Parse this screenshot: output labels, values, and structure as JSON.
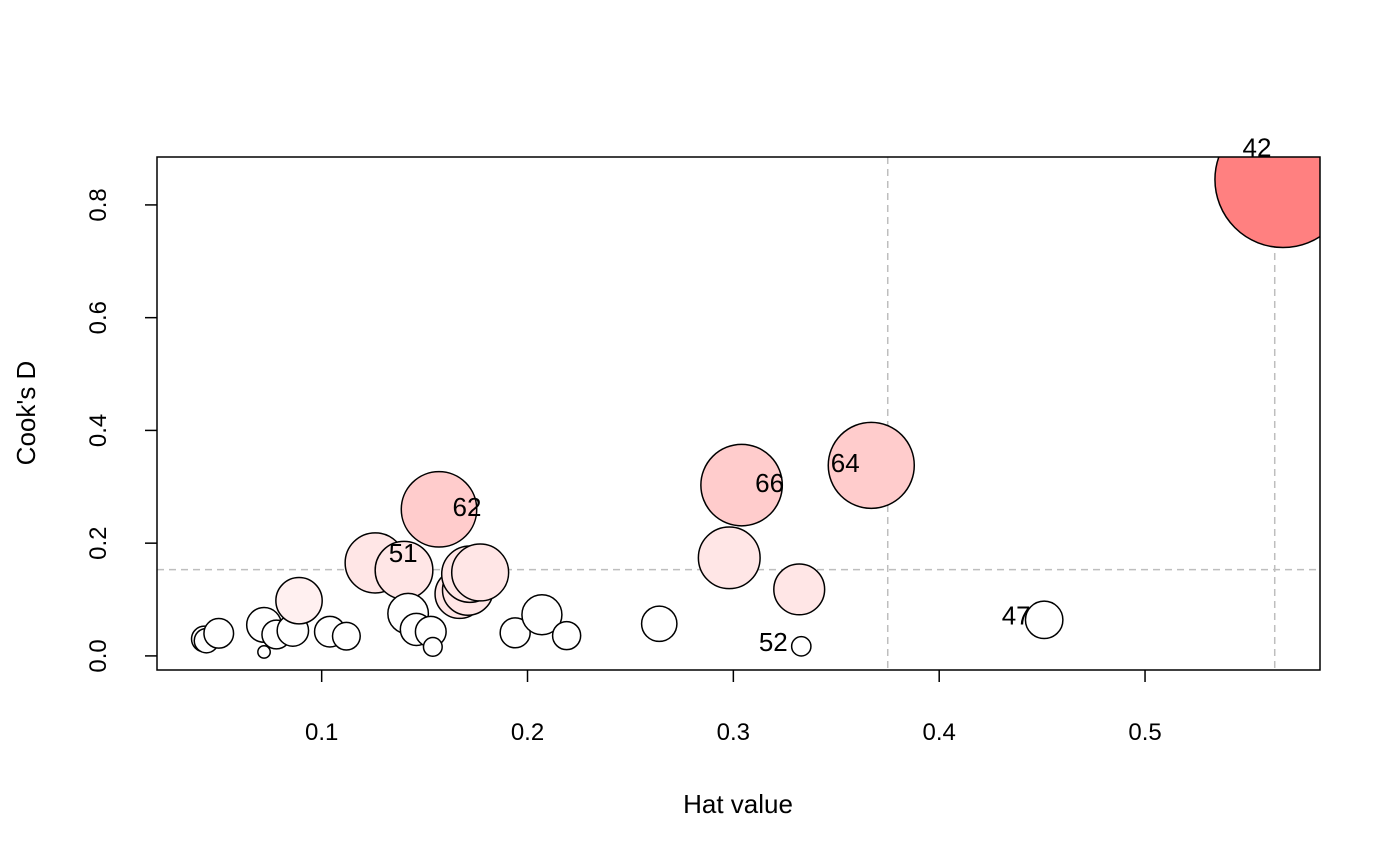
{
  "chart_data": {
    "type": "scatter",
    "title": "",
    "xlabel": "Hat value",
    "ylabel": "Cook's D",
    "xlim": [
      0.02,
      0.585
    ],
    "ylim": [
      -0.025,
      0.885
    ],
    "xticks": [
      0.1,
      0.2,
      0.3,
      0.4,
      0.5
    ],
    "yticks": [
      0.0,
      0.2,
      0.4,
      0.6,
      0.8
    ],
    "xtick_labels": [
      "0.1",
      "0.2",
      "0.3",
      "0.4",
      "0.5"
    ],
    "ytick_labels": [
      "0.0",
      "0.2",
      "0.4",
      "0.6",
      "0.8"
    ],
    "grid": false,
    "reference_lines": {
      "horizontal": [
        0.153
      ],
      "vertical": [
        0.375,
        0.563
      ],
      "style": "dashed",
      "color": "#bebebe"
    },
    "bubble_size": "proportional to Cook's D",
    "colors": {
      "strong": "#ff8080",
      "medium": "#ffcccc",
      "light": "#ffe6e6",
      "faint": "#fff0f0",
      "outline": "#000000"
    },
    "points": [
      {
        "x": 0.043,
        "y": 0.03
      },
      {
        "x": 0.044,
        "y": 0.027
      },
      {
        "x": 0.05,
        "y": 0.04
      },
      {
        "x": 0.072,
        "y": 0.055
      },
      {
        "x": 0.072,
        "y": 0.007
      },
      {
        "x": 0.078,
        "y": 0.038
      },
      {
        "x": 0.086,
        "y": 0.045
      },
      {
        "x": 0.089,
        "y": 0.098
      },
      {
        "x": 0.104,
        "y": 0.043
      },
      {
        "x": 0.112,
        "y": 0.035
      },
      {
        "x": 0.126,
        "y": 0.165,
        "label": "51"
      },
      {
        "x": 0.14,
        "y": 0.152
      },
      {
        "x": 0.142,
        "y": 0.075
      },
      {
        "x": 0.146,
        "y": 0.047
      },
      {
        "x": 0.153,
        "y": 0.043
      },
      {
        "x": 0.154,
        "y": 0.016
      },
      {
        "x": 0.157,
        "y": 0.26,
        "label": "62"
      },
      {
        "x": 0.167,
        "y": 0.11
      },
      {
        "x": 0.171,
        "y": 0.117
      },
      {
        "x": 0.172,
        "y": 0.145
      },
      {
        "x": 0.177,
        "y": 0.148
      },
      {
        "x": 0.194,
        "y": 0.041
      },
      {
        "x": 0.207,
        "y": 0.073
      },
      {
        "x": 0.219,
        "y": 0.036
      },
      {
        "x": 0.264,
        "y": 0.057
      },
      {
        "x": 0.298,
        "y": 0.174
      },
      {
        "x": 0.304,
        "y": 0.303,
        "label": "66"
      },
      {
        "x": 0.332,
        "y": 0.118
      },
      {
        "x": 0.333,
        "y": 0.017,
        "label": "52"
      },
      {
        "x": 0.367,
        "y": 0.338,
        "label": "64"
      },
      {
        "x": 0.451,
        "y": 0.064,
        "label": "47"
      },
      {
        "x": 0.567,
        "y": 0.845,
        "label": "42"
      }
    ]
  }
}
